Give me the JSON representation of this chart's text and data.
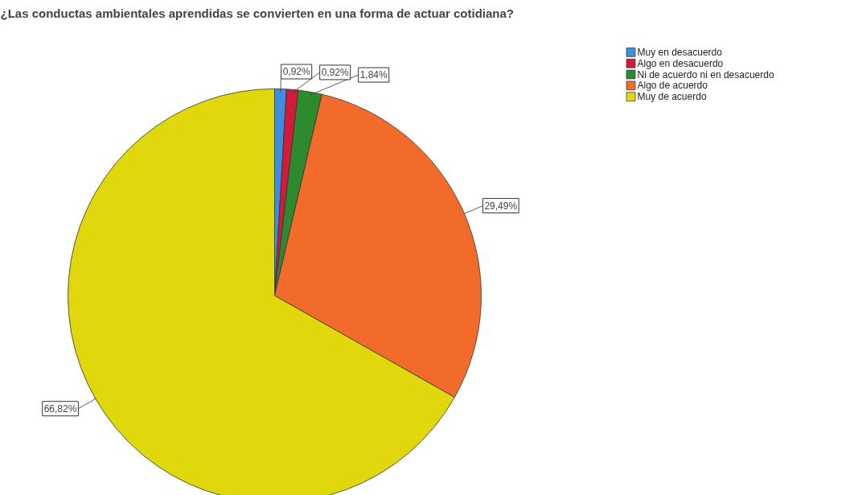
{
  "chart_data": {
    "type": "pie",
    "title": "¿Las conductas ambientales aprendidas se convierten en una forma de actuar cotidiana?",
    "categories": [
      "Muy en desacuerdo",
      "Algo en desacuerdo",
      "Ni de acuerdo ni en desacuerdo",
      "Algo de acuerdo",
      "Muy de acuerdo"
    ],
    "values": [
      0.92,
      0.92,
      1.84,
      29.49,
      66.82
    ],
    "colors": [
      "#3d8de0",
      "#d21a3a",
      "#2e8a2e",
      "#f26b2b",
      "#e0d80c"
    ],
    "value_labels": [
      "0,92%",
      "0,92%",
      "1,84%",
      "29,49%",
      "66,82%"
    ],
    "legend": "top right"
  }
}
